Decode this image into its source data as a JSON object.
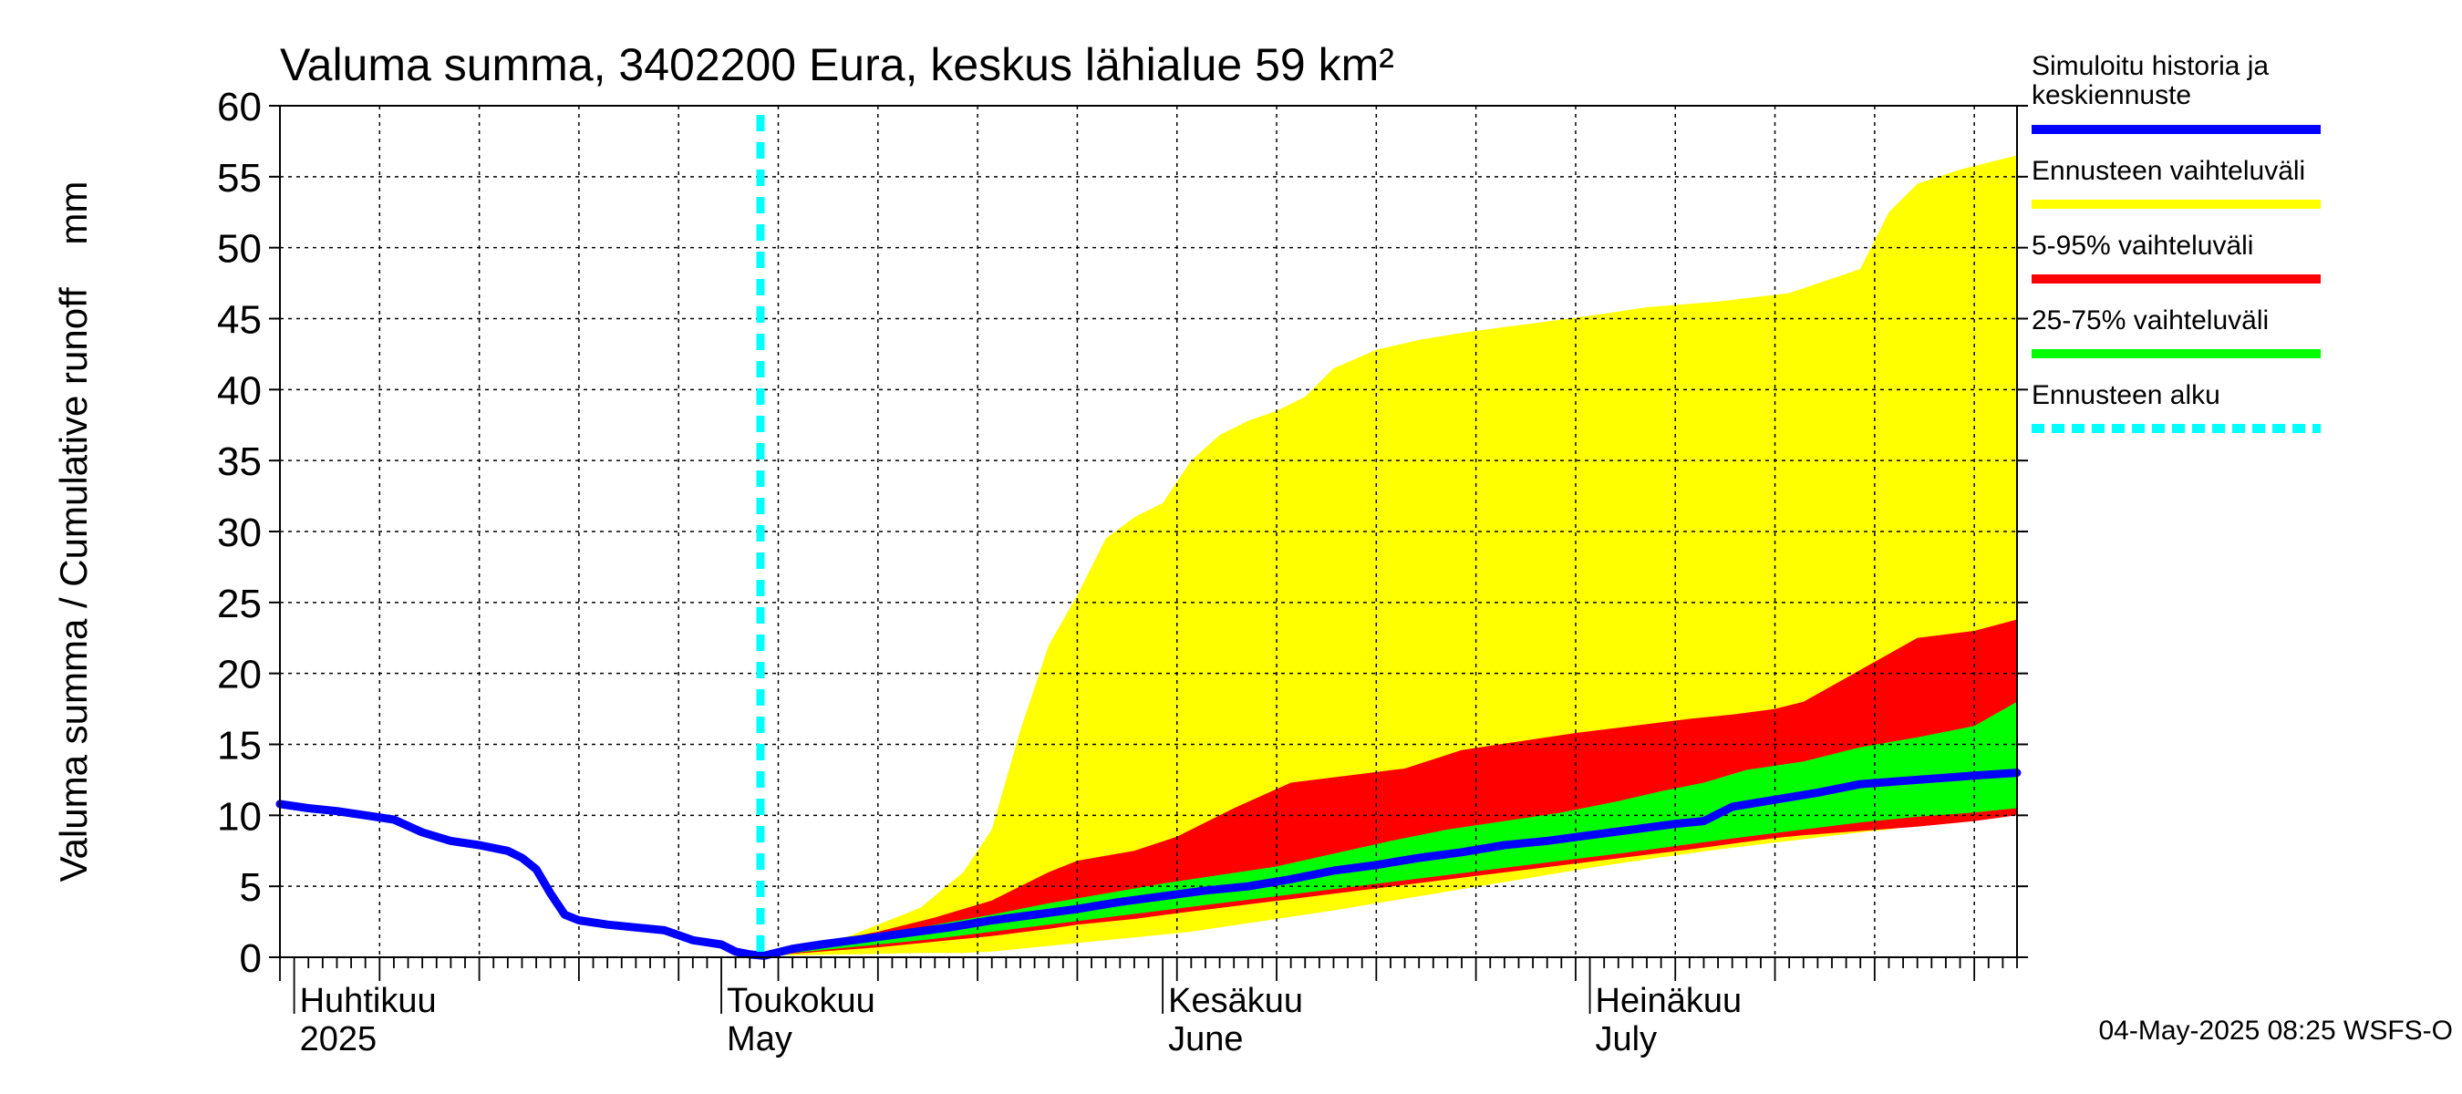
{
  "chart_data": {
    "type": "area",
    "title": "Valuma summa, 3402200 Eura, keskus lähialue 59 km²",
    "ylabel": "Valuma summa / Cumulative runoff    mm",
    "ylim": [
      0,
      60
    ],
    "xlim": [
      "2025-03-31",
      "2025-07-31"
    ],
    "y_ticks": [
      0,
      5,
      10,
      15,
      20,
      25,
      30,
      35,
      40,
      45,
      50,
      55,
      60
    ],
    "grid": true,
    "legend_position": "right",
    "month_labels": [
      {
        "date": "2025-04-01",
        "fi": "Huhtikuu",
        "en": "2025"
      },
      {
        "date": "2025-05-01",
        "fi": "Toukokuu",
        "en": "May"
      },
      {
        "date": "2025-06-01",
        "fi": "Kesäkuu",
        "en": "June"
      },
      {
        "date": "2025-07-01",
        "fi": "Heinäkuu",
        "en": "July"
      }
    ],
    "forecast_start": "2025-05-04",
    "series": [
      {
        "name": "Simuloitu historia ja keskiennuste",
        "color": "#0000ff",
        "points": [
          [
            "2025-03-31",
            10.8
          ],
          [
            "2025-04-02",
            10.5
          ],
          [
            "2025-04-04",
            10.3
          ],
          [
            "2025-04-06",
            10.0
          ],
          [
            "2025-04-08",
            9.7
          ],
          [
            "2025-04-10",
            8.8
          ],
          [
            "2025-04-12",
            8.2
          ],
          [
            "2025-04-14",
            7.9
          ],
          [
            "2025-04-16",
            7.5
          ],
          [
            "2025-04-17",
            7.0
          ],
          [
            "2025-04-18",
            6.2
          ],
          [
            "2025-04-19",
            4.5
          ],
          [
            "2025-04-20",
            3.0
          ],
          [
            "2025-04-21",
            2.6
          ],
          [
            "2025-04-23",
            2.3
          ],
          [
            "2025-04-25",
            2.1
          ],
          [
            "2025-04-27",
            1.9
          ],
          [
            "2025-04-29",
            1.2
          ],
          [
            "2025-05-01",
            0.9
          ],
          [
            "2025-05-02",
            0.4
          ],
          [
            "2025-05-03",
            0.2
          ],
          [
            "2025-05-04",
            0.1
          ],
          [
            "2025-05-06",
            0.6
          ],
          [
            "2025-05-08",
            0.9
          ],
          [
            "2025-05-11",
            1.3
          ],
          [
            "2025-05-14",
            1.7
          ],
          [
            "2025-05-17",
            2.1
          ],
          [
            "2025-05-20",
            2.6
          ],
          [
            "2025-05-23",
            3.0
          ],
          [
            "2025-05-26",
            3.4
          ],
          [
            "2025-05-29",
            3.9
          ],
          [
            "2025-06-01",
            4.3
          ],
          [
            "2025-06-04",
            4.7
          ],
          [
            "2025-06-07",
            5.0
          ],
          [
            "2025-06-10",
            5.5
          ],
          [
            "2025-06-13",
            6.1
          ],
          [
            "2025-06-16",
            6.5
          ],
          [
            "2025-06-19",
            7.0
          ],
          [
            "2025-06-22",
            7.4
          ],
          [
            "2025-06-25",
            7.9
          ],
          [
            "2025-06-28",
            8.2
          ],
          [
            "2025-07-01",
            8.6
          ],
          [
            "2025-07-04",
            9.0
          ],
          [
            "2025-07-07",
            9.4
          ],
          [
            "2025-07-09",
            9.6
          ],
          [
            "2025-07-11",
            10.6
          ],
          [
            "2025-07-14",
            11.1
          ],
          [
            "2025-07-17",
            11.6
          ],
          [
            "2025-07-20",
            12.2
          ],
          [
            "2025-07-24",
            12.5
          ],
          [
            "2025-07-28",
            12.8
          ],
          [
            "2025-07-31",
            13.0
          ]
        ]
      },
      {
        "name": "Ennusteen vaihteluväli",
        "color": "#ffff00",
        "x": [
          "2025-05-04",
          "2025-05-10",
          "2025-05-15",
          "2025-05-18",
          "2025-05-20",
          "2025-05-22",
          "2025-05-24",
          "2025-05-26",
          "2025-05-28",
          "2025-05-30",
          "2025-06-01",
          "2025-06-03",
          "2025-06-05",
          "2025-06-07",
          "2025-06-09",
          "2025-06-11",
          "2025-06-13",
          "2025-06-16",
          "2025-06-19",
          "2025-06-22",
          "2025-06-25",
          "2025-06-28",
          "2025-07-01",
          "2025-07-05",
          "2025-07-10",
          "2025-07-15",
          "2025-07-20",
          "2025-07-22",
          "2025-07-24",
          "2025-07-27",
          "2025-07-31"
        ],
        "upper": [
          0.2,
          1.5,
          3.5,
          6.0,
          9.0,
          16.0,
          22.0,
          25.5,
          29.5,
          31.0,
          32.0,
          35.0,
          36.8,
          37.8,
          38.5,
          39.5,
          41.5,
          42.8,
          43.5,
          44.0,
          44.4,
          44.8,
          45.2,
          45.8,
          46.2,
          46.8,
          48.5,
          52.5,
          54.5,
          55.5,
          56.5
        ],
        "lower": [
          0.1,
          0.2,
          0.3,
          0.3,
          0.4,
          0.6,
          0.8,
          1.0,
          1.2,
          1.4,
          1.6,
          1.8,
          2.1,
          2.4,
          2.7,
          3.0,
          3.3,
          3.8,
          4.3,
          4.8,
          5.3,
          5.8,
          6.3,
          6.9,
          7.6,
          8.2,
          8.8,
          9.0,
          9.3,
          9.6,
          10.0
        ]
      },
      {
        "name": "5-95% vaihteluväli",
        "color": "#ff0000",
        "x": [
          "2025-05-04",
          "2025-05-08",
          "2025-05-12",
          "2025-05-16",
          "2025-05-20",
          "2025-05-24",
          "2025-05-26",
          "2025-05-30",
          "2025-06-02",
          "2025-06-06",
          "2025-06-10",
          "2025-06-14",
          "2025-06-18",
          "2025-06-22",
          "2025-06-26",
          "2025-06-30",
          "2025-07-04",
          "2025-07-08",
          "2025-07-11",
          "2025-07-14",
          "2025-07-16",
          "2025-07-24",
          "2025-07-28",
          "2025-07-31"
        ],
        "upper": [
          0.1,
          1.0,
          1.8,
          2.8,
          4.0,
          6.0,
          6.8,
          7.5,
          8.5,
          10.5,
          12.3,
          12.8,
          13.3,
          14.6,
          15.2,
          15.8,
          16.3,
          16.8,
          17.1,
          17.5,
          18.0,
          22.5,
          23.0,
          23.8
        ],
        "lower": [
          0.1,
          0.4,
          0.7,
          1.1,
          1.5,
          2.0,
          2.3,
          2.7,
          3.1,
          3.6,
          4.1,
          4.6,
          5.1,
          5.6,
          6.1,
          6.6,
          7.1,
          7.6,
          8.0,
          8.4,
          8.6,
          9.2,
          9.6,
          10.0
        ]
      },
      {
        "name": "25-75% vaihteluväli",
        "color": "#00ff00",
        "x": [
          "2025-05-04",
          "2025-05-08",
          "2025-05-12",
          "2025-05-16",
          "2025-05-20",
          "2025-05-24",
          "2025-05-28",
          "2025-06-01",
          "2025-06-05",
          "2025-06-09",
          "2025-06-13",
          "2025-06-17",
          "2025-06-21",
          "2025-06-25",
          "2025-06-29",
          "2025-07-03",
          "2025-07-06",
          "2025-07-09",
          "2025-07-12",
          "2025-07-16",
          "2025-07-20",
          "2025-07-24",
          "2025-07-28",
          "2025-07-31"
        ],
        "upper": [
          0.1,
          0.8,
          1.5,
          2.3,
          3.0,
          3.8,
          4.5,
          5.2,
          5.8,
          6.4,
          7.3,
          8.2,
          9.0,
          9.6,
          10.2,
          11.0,
          11.7,
          12.3,
          13.2,
          13.8,
          14.8,
          15.5,
          16.3,
          18.0
        ],
        "lower": [
          0.1,
          0.5,
          0.9,
          1.3,
          1.8,
          2.3,
          2.8,
          3.3,
          3.8,
          4.3,
          4.8,
          5.3,
          5.8,
          6.3,
          6.8,
          7.3,
          7.7,
          8.1,
          8.5,
          9.0,
          9.5,
          9.9,
          10.2,
          10.5
        ]
      }
    ],
    "legend": [
      {
        "label": "Simuloitu historia ja keskiennuste",
        "color": "#0000ff",
        "style": "solid"
      },
      {
        "label": "Ennusteen vaihteluväli",
        "color": "#ffff00",
        "style": "solid"
      },
      {
        "label": "5-95% vaihteluväli",
        "color": "#ff0000",
        "style": "solid"
      },
      {
        "label": "25-75% vaihteluväli",
        "color": "#00ff00",
        "style": "solid"
      },
      {
        "label": "Ennusteen alku",
        "color": "#00ffff",
        "style": "dashed"
      }
    ],
    "footer": "04-May-2025 08:25 WSFS-O"
  }
}
